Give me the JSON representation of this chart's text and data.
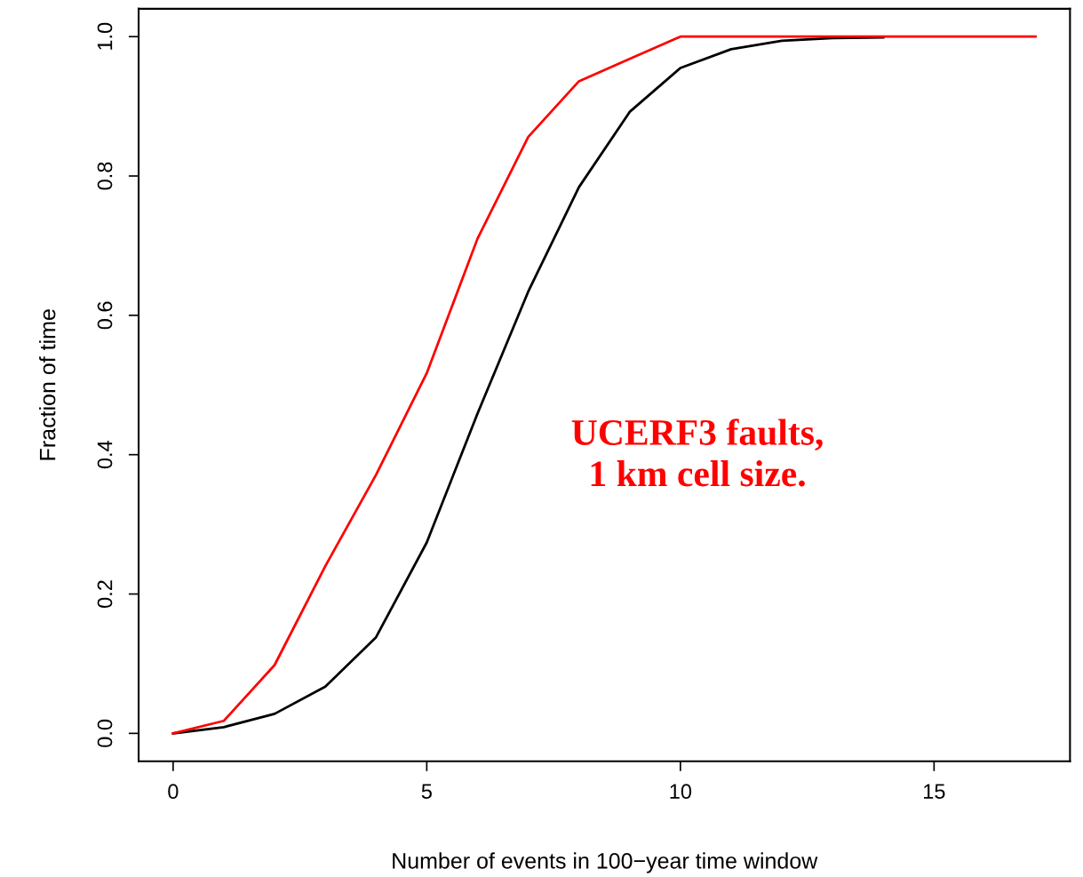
{
  "chart_data": {
    "type": "line",
    "xlabel": "Number of events in 100−year time window",
    "ylabel": "Fraction of time",
    "x": [
      0,
      1,
      2,
      3,
      4,
      5,
      6,
      7,
      8,
      9,
      10,
      11,
      12,
      13,
      14,
      15,
      16,
      17
    ],
    "series": [
      {
        "color": "#000000",
        "values": [
          0,
          0.009,
          0.028,
          0.067,
          0.138,
          0.274,
          0.459,
          0.634,
          0.784,
          0.892,
          0.955,
          0.982,
          0.994,
          0.998,
          0.999,
          null,
          null,
          null
        ]
      },
      {
        "color": "#ff0000",
        "values": [
          0,
          0.018,
          0.098,
          0.24,
          0.371,
          0.517,
          0.71,
          0.856,
          0.936,
          0.968,
          1.0,
          1.0,
          1.0,
          1.0,
          1.0,
          1.0,
          1.0,
          1.0
        ]
      }
    ],
    "xlim": [
      -0.68,
      17.68
    ],
    "ylim": [
      -0.04,
      1.04
    ],
    "xticks": [
      0,
      5,
      10,
      15
    ],
    "yticks": [
      {
        "value": 0,
        "label": "0.0"
      },
      {
        "value": 0.2,
        "label": "0.2"
      },
      {
        "value": 0.4,
        "label": "0.4"
      },
      {
        "value": 0.6,
        "label": "0.6"
      },
      {
        "value": 0.8,
        "label": "0.8"
      },
      {
        "value": 1.0,
        "label": "1.0"
      }
    ],
    "grid": false,
    "legend": false,
    "marker": "none",
    "line_style": "solid",
    "annotations": [
      "UCERF3 faults,\n1 km cell size."
    ]
  }
}
